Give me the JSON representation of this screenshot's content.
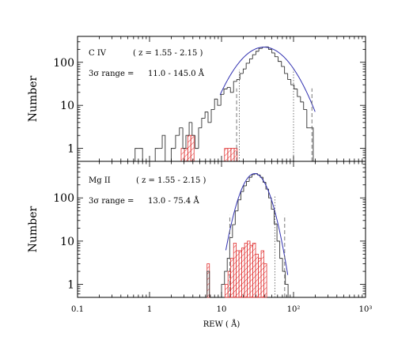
{
  "chart_data": {
    "type": "histogram",
    "xscale": "log",
    "yscale": "log",
    "xlim": [
      0.1,
      1000
    ],
    "xlabel": "REW ( Å)",
    "xticklabels": [
      "0.1",
      "1",
      "10",
      "10²",
      "10³"
    ],
    "panels": [
      {
        "id": "civ",
        "ion": "C IV",
        "redshift": "( z = 1.55 - 2.15 )",
        "range_prefix": "3σ range =",
        "range_text": "11.0 - 145.0  Å",
        "ylabel": "Number",
        "ylim": [
          0.5,
          400
        ],
        "yticklabels": [
          "1",
          "10",
          "100"
        ],
        "black_hist": [
          [
            0.63,
            0.7,
            1
          ],
          [
            0.7,
            0.8,
            1
          ],
          [
            1.2,
            1.35,
            1
          ],
          [
            1.35,
            1.5,
            1
          ],
          [
            1.5,
            1.65,
            2
          ],
          [
            2.0,
            2.3,
            1
          ],
          [
            2.3,
            2.6,
            2
          ],
          [
            2.6,
            2.9,
            3
          ],
          [
            2.9,
            3.2,
            1
          ],
          [
            3.2,
            3.55,
            2
          ],
          [
            3.55,
            3.9,
            4
          ],
          [
            3.9,
            4.3,
            2
          ],
          [
            4.3,
            4.8,
            1
          ],
          [
            4.8,
            5.3,
            3
          ],
          [
            5.3,
            5.9,
            5
          ],
          [
            5.9,
            6.5,
            7
          ],
          [
            6.5,
            7.2,
            4
          ],
          [
            7.2,
            8.0,
            8
          ],
          [
            8.0,
            8.8,
            14
          ],
          [
            8.8,
            9.8,
            10
          ],
          [
            9.8,
            10.8,
            18
          ],
          [
            10.8,
            12.0,
            24
          ],
          [
            12.0,
            13.3,
            26
          ],
          [
            13.3,
            14.7,
            20
          ],
          [
            14.7,
            16.3,
            36
          ],
          [
            16.3,
            18.0,
            40
          ],
          [
            18.0,
            20,
            55
          ],
          [
            20,
            22,
            70
          ],
          [
            22,
            24.5,
            95
          ],
          [
            24.5,
            27,
            120
          ],
          [
            27,
            30,
            150
          ],
          [
            30,
            33,
            180
          ],
          [
            33,
            37,
            210
          ],
          [
            37,
            41,
            225
          ],
          [
            41,
            45,
            228
          ],
          [
            45,
            50,
            200
          ],
          [
            50,
            55,
            165
          ],
          [
            55,
            61,
            135
          ],
          [
            61,
            68,
            105
          ],
          [
            68,
            75,
            80
          ],
          [
            75,
            83,
            55
          ],
          [
            83,
            92,
            40
          ],
          [
            92,
            102,
            30
          ],
          [
            102,
            113,
            24
          ],
          [
            113,
            125,
            16
          ],
          [
            125,
            138,
            12
          ],
          [
            138,
            153,
            8
          ],
          [
            153,
            170,
            3
          ],
          [
            170,
            188,
            3
          ]
        ],
        "red_hist": [
          [
            2.75,
            3.05,
            1
          ],
          [
            3.05,
            3.4,
            1
          ],
          [
            3.4,
            3.75,
            2
          ],
          [
            3.75,
            4.15,
            2
          ],
          [
            11.0,
            12.2,
            1
          ],
          [
            12.2,
            13.5,
            1
          ],
          [
            13.5,
            15.0,
            1
          ],
          [
            15.0,
            16.5,
            1
          ]
        ],
        "fit": {
          "amp": 225,
          "mu_log10": 1.59,
          "sigma_log10": 0.27,
          "xmin_log10": 0.98,
          "xmax_log10": 2.3
        },
        "dashed_lines": [
          16.2,
          180
        ],
        "dotted_lines": [
          17.7,
          100
        ]
      },
      {
        "id": "mgii",
        "ion": "Mg II",
        "redshift": "( z = 1.55 - 2.15 )",
        "range_prefix": "3σ range =",
        "range_text": "13.0 -  75.4  Å",
        "ylabel": "Number",
        "ylim": [
          0.5,
          700
        ],
        "yticklabels": [
          "1",
          "10",
          "100"
        ],
        "black_hist": [
          [
            6.3,
            6.8,
            2
          ],
          [
            10.0,
            11.0,
            1
          ],
          [
            11.0,
            12.0,
            2
          ],
          [
            12.0,
            13.0,
            4
          ],
          [
            13.0,
            14.2,
            12
          ],
          [
            14.2,
            15.5,
            24
          ],
          [
            15.5,
            17.0,
            50
          ],
          [
            17.0,
            18.6,
            90
          ],
          [
            18.6,
            20.3,
            140
          ],
          [
            20.3,
            22.2,
            190
          ],
          [
            22.2,
            24.3,
            240
          ],
          [
            24.3,
            26.5,
            300
          ],
          [
            26.5,
            29,
            345
          ],
          [
            29,
            31.7,
            365
          ],
          [
            31.7,
            34.6,
            340
          ],
          [
            34.6,
            37.8,
            300
          ],
          [
            37.8,
            41.3,
            230
          ],
          [
            41.3,
            45.1,
            160
          ],
          [
            45.1,
            49.3,
            100
          ],
          [
            49.3,
            53.9,
            55
          ],
          [
            53.9,
            58.9,
            25
          ],
          [
            58.9,
            64.4,
            10
          ],
          [
            64.4,
            70.4,
            4
          ],
          [
            70.4,
            77,
            2
          ],
          [
            77,
            84,
            1
          ]
        ],
        "red_hist": [
          [
            6.3,
            6.8,
            3
          ],
          [
            11.2,
            12.3,
            1
          ],
          [
            12.3,
            13.4,
            2
          ],
          [
            13.4,
            14.7,
            4
          ],
          [
            14.7,
            16.0,
            9
          ],
          [
            16.0,
            17.5,
            6
          ],
          [
            17.5,
            19.1,
            6
          ],
          [
            19.1,
            20.9,
            7
          ],
          [
            20.9,
            22.8,
            9
          ],
          [
            22.8,
            24.9,
            10
          ],
          [
            24.9,
            27.2,
            8
          ],
          [
            27.2,
            29.7,
            9
          ],
          [
            29.7,
            32.5,
            5
          ],
          [
            32.5,
            35.5,
            4
          ],
          [
            35.5,
            38.8,
            6
          ],
          [
            38.8,
            42.4,
            3
          ]
        ],
        "fit": {
          "amp": 365,
          "mu_log10": 1.46,
          "sigma_log10": 0.14,
          "xmin_log10": 1.06,
          "xmax_log10": 1.92
        },
        "dashed_lines": [
          13.0,
          75.4
        ],
        "dotted_lines": [
          55
        ]
      }
    ]
  }
}
